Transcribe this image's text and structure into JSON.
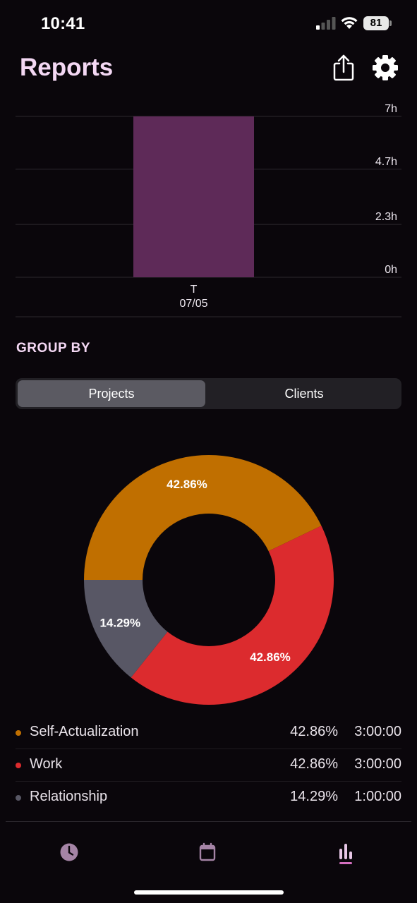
{
  "status_bar": {
    "time": "10:41",
    "battery": "81"
  },
  "header": {
    "title": "Reports"
  },
  "chart_data": [
    {
      "type": "bar",
      "categories": [
        "T\n07/05"
      ],
      "category_day": "T",
      "category_date": "07/05",
      "values": [
        7
      ],
      "ylim": [
        0,
        7
      ],
      "yticks": [
        "7h",
        "4.7h",
        "2.3h",
        "0h"
      ],
      "ytick_values": [
        7,
        4.7,
        2.3,
        0
      ],
      "bar_color": "#5e2a58"
    },
    {
      "type": "pie",
      "labels": [
        "Self-Actualization",
        "Work",
        "Relationship"
      ],
      "values": [
        42.86,
        42.86,
        14.29
      ],
      "slice_labels": [
        "42.86%",
        "42.86%",
        "14.29%"
      ],
      "colors": [
        "#c06f00",
        "#dc2b2e",
        "#585765"
      ]
    }
  ],
  "group_by": {
    "label": "GROUP BY",
    "options": [
      "Projects",
      "Clients"
    ],
    "selected": "Projects"
  },
  "legend": [
    {
      "name": "Self-Actualization",
      "percent": "42.86%",
      "duration": "3:00:00",
      "color": "#c06f00"
    },
    {
      "name": "Work",
      "percent": "42.86%",
      "duration": "3:00:00",
      "color": "#dc2b2e"
    },
    {
      "name": "Relationship",
      "percent": "14.29%",
      "duration": "1:00:00",
      "color": "#585765"
    }
  ],
  "tab_bar": {
    "items": [
      {
        "icon": "clock-icon",
        "active": false
      },
      {
        "icon": "calendar-icon",
        "active": false
      },
      {
        "icon": "bar-chart-icon",
        "active": true
      }
    ],
    "inactive_color": "#a584a6",
    "active_color": "#e7c6e6",
    "active_indicator_color": "#d56fc0"
  }
}
